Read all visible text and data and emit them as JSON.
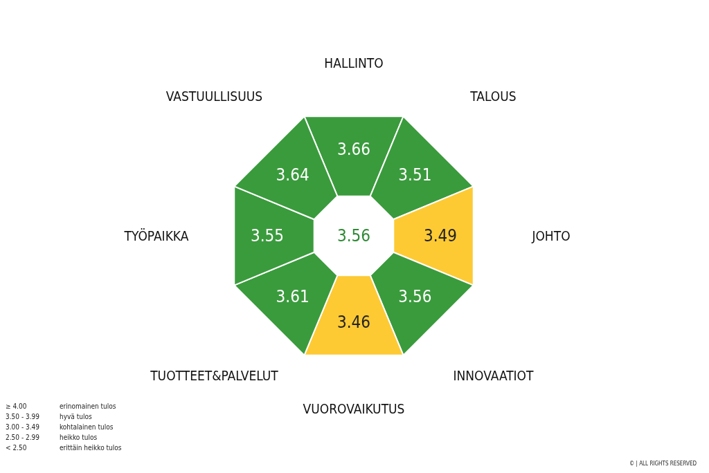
{
  "chart_data": {
    "type": "other",
    "categories": [
      "HALLINTO",
      "TALOUS",
      "JOHTO",
      "INNOVAATIOT",
      "VUOROVAIKUTUS",
      "TUOTTEET&PALVELUT",
      "TYÖPAIKKA",
      "VASTUULLISUUS"
    ],
    "values": [
      3.66,
      3.51,
      3.49,
      3.56,
      3.46,
      3.61,
      3.55,
      3.64
    ],
    "data_labels": true,
    "colors": [
      "#3a9b3c",
      "#3a9b3c",
      "#fdca34",
      "#3a9b3c",
      "#fdca34",
      "#3a9b3c",
      "#3a9b3c",
      "#3a9b3c"
    ],
    "annotations": [
      "3.56",
      "≥ 4.00",
      "erinomainen tulos",
      "3.50 - 3.99",
      "hyvä tulos",
      "3.00 - 3.49",
      "kohtalainen tulos",
      "2.50 - 2.99",
      "heikko tulos",
      "< 2.50",
      "erittäin heikko tulos",
      "© | ALL RIGHTS RESERVED"
    ]
  }
}
